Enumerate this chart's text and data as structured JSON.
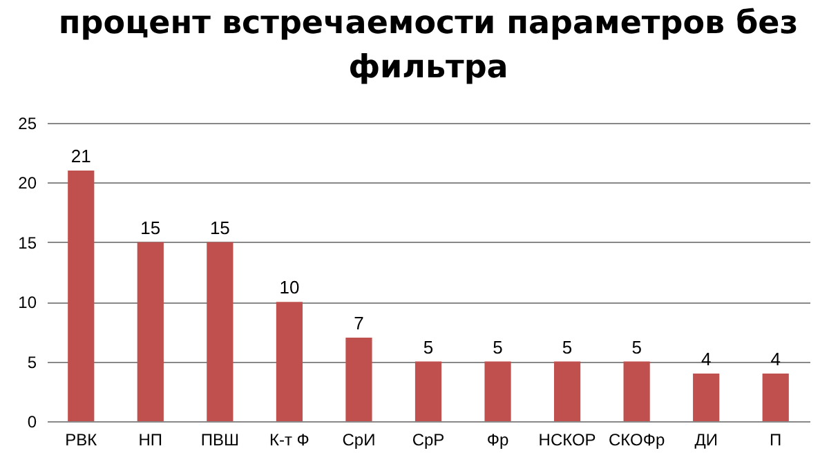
{
  "chart_data": {
    "type": "bar",
    "title": "процент встречаемости параметров без фильтра",
    "categories": [
      "РВК",
      "НП",
      "ПВШ",
      "К-т Ф",
      "СрИ",
      "СрР",
      "Фр",
      "НСКОР",
      "СКОФр",
      "ДИ",
      "П"
    ],
    "values": [
      21,
      15,
      15,
      10,
      7,
      5,
      5,
      5,
      5,
      4,
      4
    ],
    "color": "#c0504d",
    "ylim": [
      0,
      25
    ],
    "yticks": [
      0,
      5,
      10,
      15,
      20,
      25
    ],
    "grid": "y",
    "data_labels": true
  }
}
